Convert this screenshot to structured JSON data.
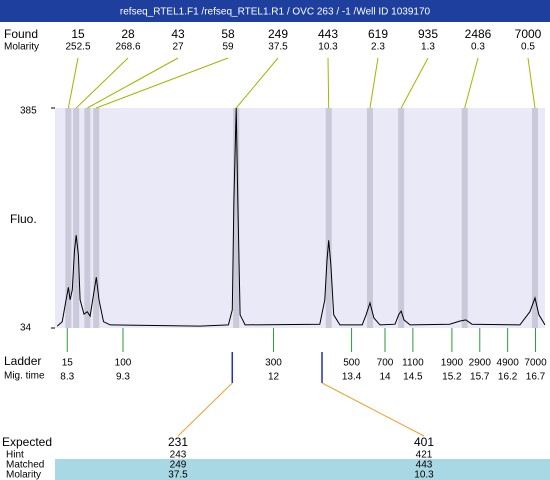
{
  "chart_data": {
    "type": "line",
    "title": "refseq_RTEL1.F1 /refseq_RTEL1.R1 / OVC 263 / -1 /Well ID 1039170",
    "ylabel": "Fluo.",
    "ylim": [
      34,
      385
    ],
    "yticks": [
      34,
      385
    ],
    "xlim": [
      8.08,
      16.87
    ],
    "x": [
      8.12,
      8.21,
      8.28,
      8.32,
      8.35,
      8.39,
      8.43,
      8.46,
      8.5,
      8.53,
      8.6,
      8.66,
      8.71,
      8.77,
      8.82,
      8.87,
      8.95,
      9.07,
      10.68,
      11.19,
      11.26,
      11.29,
      11.33,
      11.36,
      11.4,
      11.49,
      12.83,
      12.92,
      12.96,
      12.99,
      13.03,
      13.08,
      13.19,
      13.59,
      13.66,
      13.73,
      13.8,
      13.91,
      14.18,
      14.25,
      14.29,
      14.34,
      14.45,
      15.16,
      15.34,
      15.45,
      15.56,
      16.42,
      16.6,
      16.69,
      16.76,
      16.87
    ],
    "series": [
      {
        "color": "#000000",
        "values": [
          37,
          44,
          79,
          99,
          79,
          95,
          158,
          182,
          150,
          79,
          56,
          60,
          53,
          87,
          115,
          79,
          44,
          39,
          37,
          39,
          63,
          238,
          385,
          238,
          55,
          39,
          40,
          79,
          142,
          174,
          134,
          55,
          39,
          39,
          55,
          74,
          50,
          39,
          40,
          56,
          61,
          47,
          39,
          40,
          45,
          47,
          40,
          39,
          60,
          82,
          55,
          39
        ]
      }
    ],
    "found": {
      "label": "Found",
      "sub_label": "Molarity",
      "sizes": [
        15,
        28,
        43,
        58,
        249,
        443,
        619,
        935,
        2486,
        7000
      ],
      "molarities": [
        252.5,
        268.6,
        27,
        59,
        37.5,
        10.3,
        2.3,
        1.3,
        0.3,
        0.5
      ],
      "times": [
        8.32,
        8.46,
        8.66,
        8.82,
        11.33,
        12.99,
        13.73,
        14.29,
        15.43,
        16.69
      ]
    },
    "ladder": {
      "label": "Ladder",
      "sub_label": "Mig. time",
      "sizes": [
        15,
        100,
        300,
        500,
        700,
        1100,
        1900,
        2900,
        4900,
        7000
      ],
      "times": [
        8.3,
        9.3,
        12,
        13.4,
        14,
        14.5,
        15.2,
        15.7,
        16.2,
        16.7
      ]
    },
    "expected": {
      "label": "Expected",
      "values": [
        231,
        401
      ],
      "times": [
        11.26,
        12.87
      ],
      "hint": {
        "label": "Hint",
        "values": [
          243,
          421
        ]
      },
      "matched": {
        "label": "Matched",
        "values": [
          249,
          443
        ]
      },
      "molarity": {
        "label": "Molarity",
        "values": [
          37.5,
          10.3
        ]
      }
    }
  }
}
